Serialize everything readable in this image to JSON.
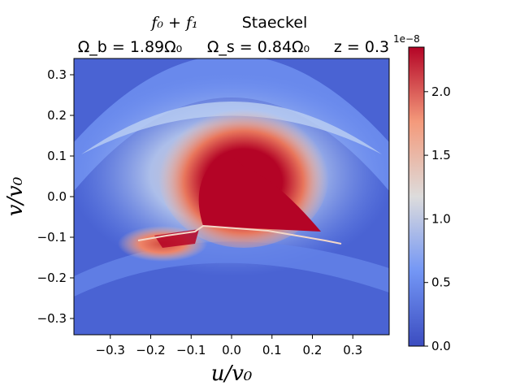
{
  "chart_data": {
    "type": "heatmap",
    "title_line1": {
      "math": "f₀ + f₁",
      "word": "Staeckel"
    },
    "title_line2": {
      "omega_b": "Ω_b = 1.89Ω₀",
      "omega_s": "Ω_s = 0.84Ω₀",
      "z": "z = 0.3"
    },
    "xlabel": "u/v₀",
    "ylabel": "v/v₀",
    "xlim": [
      -0.39,
      0.39
    ],
    "ylim": [
      -0.34,
      0.34
    ],
    "x_ticks": [
      -0.3,
      -0.2,
      -0.1,
      0.0,
      0.1,
      0.2,
      0.3
    ],
    "x_tick_labels": [
      "−0.3",
      "−0.2",
      "−0.1",
      "0.0",
      "0.1",
      "0.2",
      "0.3"
    ],
    "y_ticks": [
      0.3,
      0.2,
      0.1,
      0.0,
      -0.1,
      -0.2,
      -0.3
    ],
    "y_tick_labels": [
      "0.3",
      "0.2",
      "0.1",
      "0.0",
      "−0.1",
      "−0.2",
      "−0.3"
    ],
    "colorbar": {
      "colormap": "coolwarm",
      "min": 0.0,
      "max": 2.35e-08,
      "ticks": [
        0.0,
        0.5,
        1.0,
        1.5,
        2.0
      ],
      "tick_labels": [
        "0.0",
        "0.5",
        "1.0",
        "1.5",
        "2.0"
      ],
      "exponent_label": "1e−8"
    }
  }
}
